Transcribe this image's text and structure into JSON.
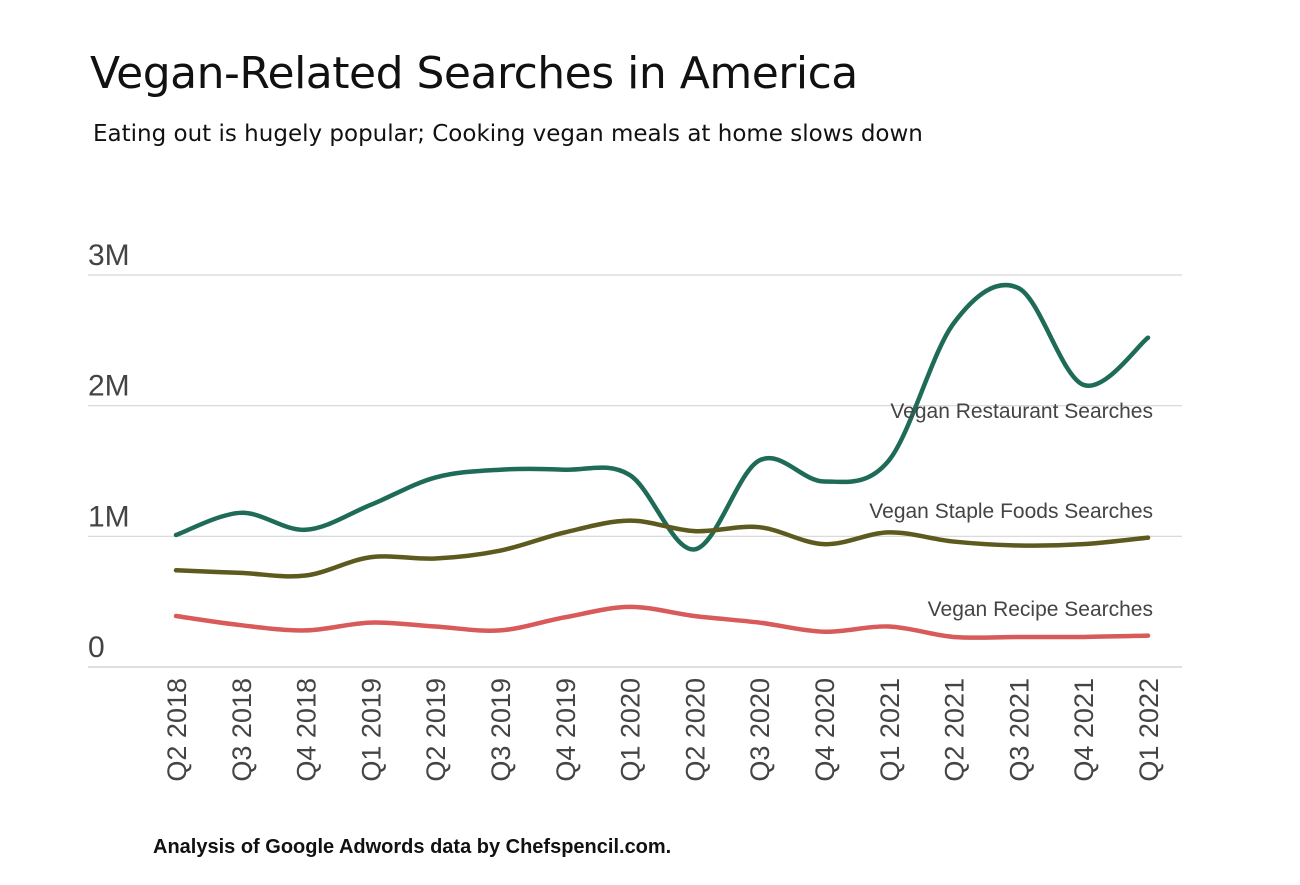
{
  "chart_data": {
    "type": "line",
    "title": "Vegan-Related Searches in America",
    "subtitle": "Eating out is hugely popular; Cooking vegan meals at home slows down",
    "source": "Analysis of Google Adwords data by Chefspencil.com.",
    "xlabel": "",
    "ylabel": "",
    "ylim": [
      0,
      3000000
    ],
    "grid": true,
    "y_ticks": [
      {
        "value": 0,
        "label": "0"
      },
      {
        "value": 1000000,
        "label": "1M"
      },
      {
        "value": 2000000,
        "label": "2M"
      },
      {
        "value": 3000000,
        "label": "3M"
      }
    ],
    "categories": [
      "Q2 2018",
      "Q3 2018",
      "Q4 2018",
      "Q1 2019",
      "Q2 2019",
      "Q3 2019",
      "Q4 2019",
      "Q1 2020",
      "Q2 2020",
      "Q3 2020",
      "Q4 2020",
      "Q1 2021",
      "Q2 2021",
      "Q3 2021",
      "Q4 2021",
      "Q1 2022"
    ],
    "series": [
      {
        "name": "Vegan Restaurant Searches",
        "color": "#1e6b58",
        "values": [
          1010000,
          1180000,
          1050000,
          1240000,
          1450000,
          1510000,
          1510000,
          1470000,
          900000,
          1580000,
          1420000,
          1580000,
          2630000,
          2900000,
          2160000,
          2520000
        ]
      },
      {
        "name": "Vegan Staple Foods Searches",
        "color": "#5c5a1e",
        "values": [
          740000,
          720000,
          700000,
          840000,
          830000,
          890000,
          1030000,
          1120000,
          1040000,
          1070000,
          940000,
          1030000,
          960000,
          930000,
          940000,
          990000
        ]
      },
      {
        "name": "Vegan Recipe Searches",
        "color": "#d85a5a",
        "values": [
          390000,
          320000,
          280000,
          340000,
          310000,
          280000,
          380000,
          460000,
          390000,
          340000,
          270000,
          310000,
          230000,
          230000,
          230000,
          240000
        ]
      }
    ]
  }
}
